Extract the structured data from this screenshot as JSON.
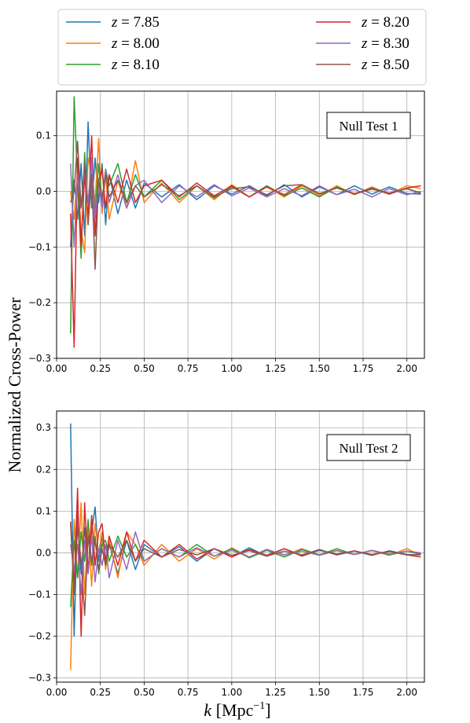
{
  "ylabel": "Normalized Cross-Power",
  "xlabel": {
    "symbol": "k",
    "unit_open": " [Mpc",
    "unit_exp": "−1",
    "unit_close": "]"
  },
  "legend": [
    {
      "prefix": "z",
      "value": " = 7.85",
      "color": "#1f77b4"
    },
    {
      "prefix": "z",
      "value": " = 8.00",
      "color": "#ff7f0e"
    },
    {
      "prefix": "z",
      "value": " = 8.10",
      "color": "#2ca02c"
    },
    {
      "prefix": "z",
      "value": " = 8.20",
      "color": "#d62728"
    },
    {
      "prefix": "z",
      "value": " = 8.30",
      "color": "#9467bd"
    },
    {
      "prefix": "z",
      "value": " = 8.50",
      "color": "#8c564b"
    }
  ],
  "chart_data": [
    {
      "type": "line",
      "label": "Null Test 1",
      "xlim": [
        0.0,
        2.1
      ],
      "ylim": [
        -0.3,
        0.18
      ],
      "xticks": [
        0.0,
        0.25,
        0.5,
        0.75,
        1.0,
        1.25,
        1.5,
        1.75,
        2.0
      ],
      "xtick_labels": [
        "0.00",
        "0.25",
        "0.50",
        "0.75",
        "1.00",
        "1.25",
        "1.50",
        "1.75",
        "2.00"
      ],
      "yticks": [
        -0.3,
        -0.2,
        -0.1,
        0.0,
        0.1
      ],
      "ytick_labels": [
        "−0.3",
        "−0.2",
        "−0.1",
        "0.0",
        "0.1"
      ],
      "grid": true,
      "x": [
        0.08,
        0.1,
        0.12,
        0.14,
        0.16,
        0.18,
        0.2,
        0.22,
        0.24,
        0.26,
        0.28,
        0.3,
        0.35,
        0.4,
        0.45,
        0.5,
        0.6,
        0.7,
        0.8,
        0.9,
        1.0,
        1.1,
        1.2,
        1.3,
        1.4,
        1.5,
        1.6,
        1.7,
        1.8,
        1.9,
        2.0,
        2.08
      ],
      "series": [
        {
          "name": "z = 7.85",
          "values": [
            -0.1,
            0.02,
            -0.05,
            0.05,
            -0.08,
            0.125,
            -0.03,
            0.06,
            -0.02,
            0.05,
            -0.06,
            0.03,
            -0.04,
            0.02,
            -0.03,
            0.015,
            -0.01,
            0.012,
            -0.015,
            0.01,
            -0.005,
            0.01,
            -0.008,
            0.012,
            -0.01,
            0.008,
            -0.006,
            0.01,
            -0.005,
            0.008,
            -0.004,
            -0.005
          ]
        },
        {
          "name": "z = 8.00",
          "values": [
            0.0,
            -0.05,
            0.04,
            -0.07,
            -0.11,
            0.06,
            0.03,
            -0.02,
            0.095,
            -0.04,
            0.03,
            -0.05,
            0.02,
            -0.03,
            0.055,
            -0.02,
            0.015,
            -0.02,
            0.01,
            -0.015,
            0.012,
            -0.01,
            0.008,
            -0.01,
            0.01,
            -0.008,
            0.01,
            -0.006,
            0.008,
            -0.005,
            0.01,
            0.005
          ]
        },
        {
          "name": "z = 8.10",
          "values": [
            -0.255,
            0.17,
            0.02,
            -0.12,
            0.07,
            -0.06,
            0.06,
            -0.04,
            0.05,
            -0.02,
            0.04,
            0.01,
            0.05,
            -0.02,
            0.03,
            -0.01,
            0.02,
            -0.015,
            0.01,
            -0.012,
            0.008,
            -0.01,
            0.01,
            -0.008,
            0.006,
            -0.01,
            0.008,
            -0.005,
            0.006,
            -0.004,
            0.005,
            -0.003
          ]
        },
        {
          "name": "z = 8.20",
          "values": [
            -0.04,
            -0.28,
            0.06,
            -0.1,
            0.03,
            -0.05,
            0.1,
            -0.08,
            0.02,
            0.04,
            -0.03,
            0.03,
            -0.02,
            0.04,
            -0.02,
            0.01,
            0.02,
            -0.01,
            0.015,
            -0.008,
            0.01,
            -0.01,
            0.008,
            -0.006,
            0.012,
            -0.005,
            0.006,
            -0.004,
            0.005,
            -0.005,
            0.006,
            0.01
          ]
        },
        {
          "name": "z = 8.30",
          "values": [
            0.05,
            -0.1,
            0.03,
            -0.03,
            0.04,
            -0.02,
            0.06,
            -0.05,
            0.02,
            -0.03,
            0.04,
            -0.02,
            0.03,
            -0.03,
            0.01,
            0.02,
            -0.02,
            0.01,
            -0.01,
            0.012,
            -0.008,
            0.006,
            -0.01,
            0.005,
            -0.008,
            0.01,
            -0.006,
            0.004,
            -0.01,
            0.005,
            -0.006,
            0.0
          ]
        },
        {
          "name": "z = 8.50",
          "values": [
            -0.02,
            0.0,
            0.09,
            -0.03,
            0.05,
            -0.06,
            0.03,
            -0.14,
            0.02,
            -0.01,
            0.03,
            -0.01,
            0.02,
            -0.02,
            0.01,
            -0.01,
            0.012,
            -0.008,
            0.01,
            -0.01,
            0.005,
            0.008,
            -0.006,
            0.01,
            0.012,
            -0.004,
            0.006,
            -0.005,
            0.004,
            -0.003,
            0.005,
            -0.004
          ]
        }
      ]
    },
    {
      "type": "line",
      "label": "Null Test 2",
      "xlim": [
        0.0,
        2.1
      ],
      "ylim": [
        -0.31,
        0.34
      ],
      "xticks": [
        0.0,
        0.25,
        0.5,
        0.75,
        1.0,
        1.25,
        1.5,
        1.75,
        2.0
      ],
      "xtick_labels": [
        "0.00",
        "0.25",
        "0.50",
        "0.75",
        "1.00",
        "1.25",
        "1.50",
        "1.75",
        "2.00"
      ],
      "yticks": [
        -0.3,
        -0.2,
        -0.1,
        0.0,
        0.1,
        0.2,
        0.3
      ],
      "ytick_labels": [
        "−0.3",
        "−0.2",
        "−0.1",
        "0.0",
        "0.1",
        "0.2",
        "0.3"
      ],
      "grid": true,
      "x": [
        0.08,
        0.1,
        0.12,
        0.14,
        0.16,
        0.18,
        0.2,
        0.22,
        0.24,
        0.26,
        0.28,
        0.3,
        0.35,
        0.4,
        0.45,
        0.5,
        0.6,
        0.7,
        0.8,
        0.9,
        1.0,
        1.1,
        1.2,
        1.3,
        1.4,
        1.5,
        1.6,
        1.7,
        1.8,
        1.9,
        2.0,
        2.08
      ],
      "series": [
        {
          "name": "z = 7.85",
          "values": [
            0.31,
            -0.2,
            0.1,
            -0.05,
            0.06,
            -0.04,
            0.05,
            0.11,
            -0.02,
            0.04,
            -0.03,
            0.02,
            -0.05,
            0.03,
            -0.04,
            0.02,
            -0.01,
            0.015,
            -0.02,
            0.01,
            -0.01,
            0.012,
            -0.008,
            0.01,
            -0.006,
            0.008,
            -0.005,
            0.004,
            -0.006,
            0.005,
            -0.004,
            -0.005
          ]
        },
        {
          "name": "z = 8.00",
          "values": [
            -0.28,
            0.08,
            -0.06,
            0.12,
            -0.1,
            0.06,
            -0.08,
            0.07,
            0.0,
            0.05,
            -0.04,
            0.03,
            -0.06,
            0.05,
            0.02,
            -0.03,
            0.02,
            -0.02,
            0.01,
            -0.015,
            0.012,
            -0.01,
            0.008,
            -0.006,
            0.01,
            -0.005,
            0.006,
            -0.004,
            0.005,
            -0.006,
            0.01,
            -0.006
          ]
        },
        {
          "name": "z = 8.10",
          "values": [
            -0.13,
            0.03,
            -0.06,
            0.05,
            -0.02,
            0.08,
            -0.03,
            0.04,
            -0.05,
            0.02,
            0.03,
            -0.02,
            0.04,
            -0.01,
            0.02,
            -0.02,
            0.01,
            -0.01,
            0.02,
            -0.008,
            0.01,
            -0.012,
            0.006,
            -0.01,
            0.008,
            -0.005,
            0.01,
            -0.004,
            0.006,
            -0.005,
            0.004,
            -0.003
          ]
        },
        {
          "name": "z = 8.20",
          "values": [
            0.07,
            -0.08,
            0.155,
            -0.2,
            0.12,
            -0.05,
            0.09,
            -0.03,
            0.05,
            0.07,
            -0.02,
            0.04,
            -0.03,
            0.05,
            -0.02,
            0.03,
            -0.01,
            0.02,
            -0.015,
            0.01,
            -0.01,
            0.008,
            -0.006,
            0.01,
            -0.008,
            0.006,
            -0.004,
            0.005,
            -0.005,
            0.004,
            -0.005,
            -0.01
          ]
        },
        {
          "name": "z = 8.30",
          "values": [
            0.02,
            -0.04,
            0.02,
            -0.1,
            0.03,
            -0.05,
            0.04,
            -0.07,
            0.01,
            -0.03,
            0.02,
            -0.06,
            0.03,
            -0.04,
            0.05,
            -0.02,
            0.01,
            -0.01,
            0.012,
            -0.008,
            0.006,
            -0.01,
            0.008,
            -0.005,
            0.004,
            -0.006,
            0.005,
            -0.004,
            0.006,
            -0.003,
            0.004,
            0.0
          ]
        },
        {
          "name": "z = 8.50",
          "values": [
            0.075,
            -0.1,
            0.06,
            -0.02,
            -0.15,
            0.04,
            -0.02,
            0.03,
            -0.04,
            0.01,
            -0.03,
            0.02,
            -0.01,
            0.03,
            -0.02,
            0.01,
            -0.01,
            0.008,
            -0.005,
            0.01,
            -0.006,
            0.005,
            -0.008,
            0.004,
            -0.005,
            0.006,
            -0.003,
            0.004,
            -0.004,
            0.003,
            -0.005,
            -0.003
          ]
        }
      ]
    }
  ]
}
